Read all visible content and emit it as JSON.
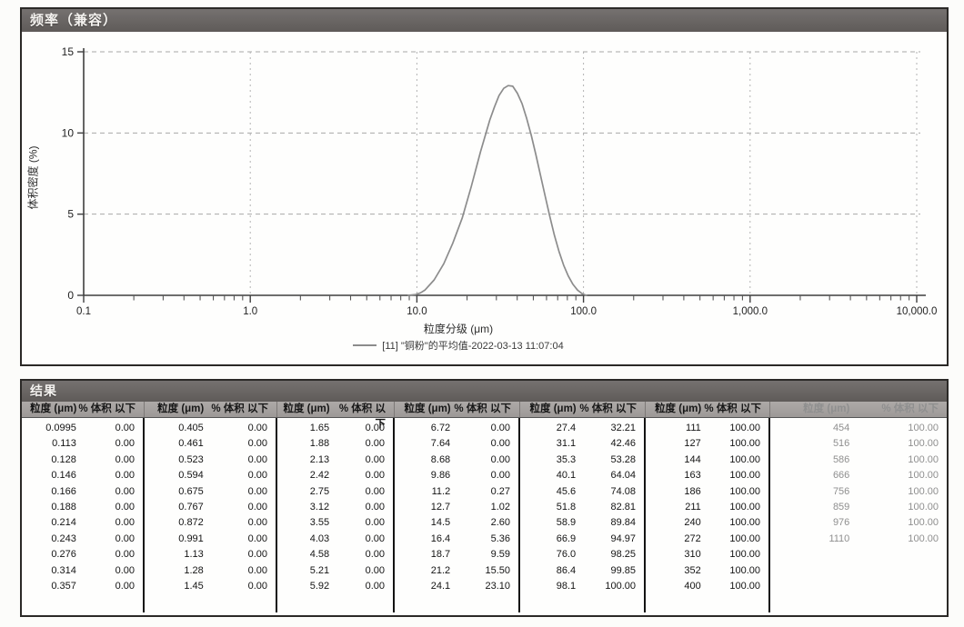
{
  "colors": {
    "titlebar_bg": "#6b6765",
    "header_bg": "#a5a19f",
    "curve": "#8c8c8c",
    "grid": "#a8a8a8",
    "axis": "#3f3f3f",
    "faded_text": "#8f8f8f"
  },
  "chart_data": {
    "type": "line",
    "title": "频率（兼容）",
    "xlabel": "粒度分级 (μm)",
    "ylabel": "体积密度 (%)",
    "x_scale": "log",
    "xlim": [
      0.1,
      10000
    ],
    "ylim": [
      0,
      15
    ],
    "y_ticks": [
      0,
      5,
      10,
      15
    ],
    "y_tick_labels": [
      "0",
      "5",
      "10",
      "15"
    ],
    "x_tick_values": [
      0.1,
      1,
      10,
      100,
      1000,
      10000
    ],
    "x_tick_labels": [
      "0.1",
      "1.0",
      "10.0",
      "100.0",
      "1,000.0",
      "10,000.0"
    ],
    "grid": "dashed",
    "legend": "[11] \"铜粉\"的平均值-2022-03-13 11:07:04",
    "series": [
      {
        "name": "[11] \"铜粉\"的平均值-2022-03-13 11:07:04",
        "points": [
          [
            8.9,
            0
          ],
          [
            9.86,
            0.05
          ],
          [
            10.5,
            0.15
          ],
          [
            11.2,
            0.33
          ],
          [
            12.7,
            0.95
          ],
          [
            14.5,
            1.95
          ],
          [
            16.4,
            3.2
          ],
          [
            18.7,
            4.75
          ],
          [
            21.2,
            6.7
          ],
          [
            24.1,
            8.85
          ],
          [
            27.4,
            10.8
          ],
          [
            29.2,
            11.6
          ],
          [
            31.1,
            12.3
          ],
          [
            33.2,
            12.75
          ],
          [
            35.3,
            12.92
          ],
          [
            37.6,
            12.88
          ],
          [
            40.1,
            12.45
          ],
          [
            42.8,
            11.8
          ],
          [
            45.6,
            10.9
          ],
          [
            48.6,
            9.85
          ],
          [
            51.8,
            8.65
          ],
          [
            55.2,
            7.4
          ],
          [
            58.9,
            6.1
          ],
          [
            62.8,
            4.85
          ],
          [
            66.9,
            3.7
          ],
          [
            71.3,
            2.7
          ],
          [
            76.0,
            1.85
          ],
          [
            81.0,
            1.2
          ],
          [
            86.4,
            0.68
          ],
          [
            92.1,
            0.32
          ],
          [
            98.1,
            0.1
          ],
          [
            104,
            0
          ]
        ]
      }
    ]
  },
  "results": {
    "title": "结果",
    "col_headers": {
      "size": "粒度 (μm)",
      "pct": "% 体积 以下"
    },
    "groups": [
      {
        "faded": false,
        "rows": [
          [
            "0.0995",
            "0.00"
          ],
          [
            "0.113",
            "0.00"
          ],
          [
            "0.128",
            "0.00"
          ],
          [
            "0.146",
            "0.00"
          ],
          [
            "0.166",
            "0.00"
          ],
          [
            "0.188",
            "0.00"
          ],
          [
            "0.214",
            "0.00"
          ],
          [
            "0.243",
            "0.00"
          ],
          [
            "0.276",
            "0.00"
          ],
          [
            "0.314",
            "0.00"
          ],
          [
            "0.357",
            "0.00"
          ]
        ]
      },
      {
        "faded": false,
        "rows": [
          [
            "0.405",
            "0.00"
          ],
          [
            "0.461",
            "0.00"
          ],
          [
            "0.523",
            "0.00"
          ],
          [
            "0.594",
            "0.00"
          ],
          [
            "0.675",
            "0.00"
          ],
          [
            "0.767",
            "0.00"
          ],
          [
            "0.872",
            "0.00"
          ],
          [
            "0.991",
            "0.00"
          ],
          [
            "1.13",
            "0.00"
          ],
          [
            "1.28",
            "0.00"
          ],
          [
            "1.45",
            "0.00"
          ]
        ]
      },
      {
        "faded": false,
        "rows": [
          [
            "1.65",
            "0.00"
          ],
          [
            "1.88",
            "0.00"
          ],
          [
            "2.13",
            "0.00"
          ],
          [
            "2.42",
            "0.00"
          ],
          [
            "2.75",
            "0.00"
          ],
          [
            "3.12",
            "0.00"
          ],
          [
            "3.55",
            "0.00"
          ],
          [
            "4.03",
            "0.00"
          ],
          [
            "4.58",
            "0.00"
          ],
          [
            "5.21",
            "0.00"
          ],
          [
            "5.92",
            "0.00"
          ]
        ]
      },
      {
        "faded": false,
        "rows": [
          [
            "6.72",
            "0.00"
          ],
          [
            "7.64",
            "0.00"
          ],
          [
            "8.68",
            "0.00"
          ],
          [
            "9.86",
            "0.00"
          ],
          [
            "11.2",
            "0.27"
          ],
          [
            "12.7",
            "1.02"
          ],
          [
            "14.5",
            "2.60"
          ],
          [
            "16.4",
            "5.36"
          ],
          [
            "18.7",
            "9.59"
          ],
          [
            "21.2",
            "15.50"
          ],
          [
            "24.1",
            "23.10"
          ]
        ]
      },
      {
        "faded": false,
        "rows": [
          [
            "27.4",
            "32.21"
          ],
          [
            "31.1",
            "42.46"
          ],
          [
            "35.3",
            "53.28"
          ],
          [
            "40.1",
            "64.04"
          ],
          [
            "45.6",
            "74.08"
          ],
          [
            "51.8",
            "82.81"
          ],
          [
            "58.9",
            "89.84"
          ],
          [
            "66.9",
            "94.97"
          ],
          [
            "76.0",
            "98.25"
          ],
          [
            "86.4",
            "99.85"
          ],
          [
            "98.1",
            "100.00"
          ]
        ]
      },
      {
        "faded": false,
        "rows": [
          [
            "111",
            "100.00"
          ],
          [
            "127",
            "100.00"
          ],
          [
            "144",
            "100.00"
          ],
          [
            "163",
            "100.00"
          ],
          [
            "186",
            "100.00"
          ],
          [
            "211",
            "100.00"
          ],
          [
            "240",
            "100.00"
          ],
          [
            "272",
            "100.00"
          ],
          [
            "310",
            "100.00"
          ],
          [
            "352",
            "100.00"
          ],
          [
            "400",
            "100.00"
          ]
        ]
      },
      {
        "faded": true,
        "rows": [
          [
            "454",
            "100.00"
          ],
          [
            "516",
            "100.00"
          ],
          [
            "586",
            "100.00"
          ],
          [
            "666",
            "100.00"
          ],
          [
            "756",
            "100.00"
          ],
          [
            "859",
            "100.00"
          ],
          [
            "976",
            "100.00"
          ],
          [
            "1110",
            "100.00"
          ]
        ]
      }
    ]
  }
}
